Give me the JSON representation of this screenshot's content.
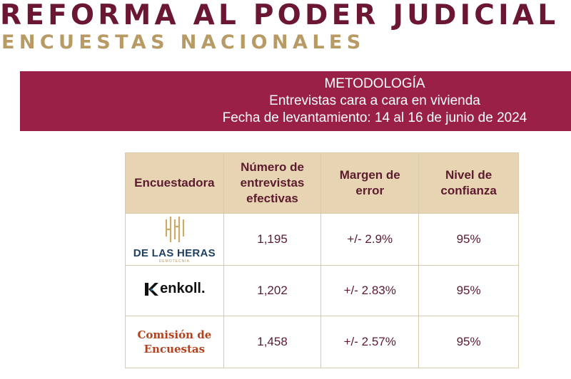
{
  "header": {
    "title": "REFORMA AL PODER JUDICIAL",
    "subtitle": "ENCUESTAS NACIONALES"
  },
  "banner": {
    "line1": "METODOLOGÍA",
    "line2": "Entrevistas cara a cara en vivienda",
    "line3": "Fecha de levantamiento: 14 al 16 de junio de 2024"
  },
  "table": {
    "headers": [
      "Encuestadora",
      "Número de entrevistas efectivas",
      "Margen de error",
      "Nivel de confianza"
    ],
    "rows": [
      {
        "pollster": "DE LAS HERAS",
        "pollster_sub": "DEMOTECNIA",
        "interviews": "1,195",
        "margin": "+/- 2.9%",
        "confidence": "95%"
      },
      {
        "pollster": "enkoll.",
        "interviews": "1,202",
        "margin": "+/- 2.83%",
        "confidence": "95%"
      },
      {
        "pollster_line1": "Comisión de",
        "pollster_line2": "Encuestas",
        "interviews": "1,458",
        "margin": "+/- 2.57%",
        "confidence": "95%"
      }
    ]
  },
  "colors": {
    "title": "#6b1734",
    "subtitle": "#b89a64",
    "banner": "#9b2047",
    "table_header": "#e7d4b3",
    "text": "#5c1b2e"
  }
}
